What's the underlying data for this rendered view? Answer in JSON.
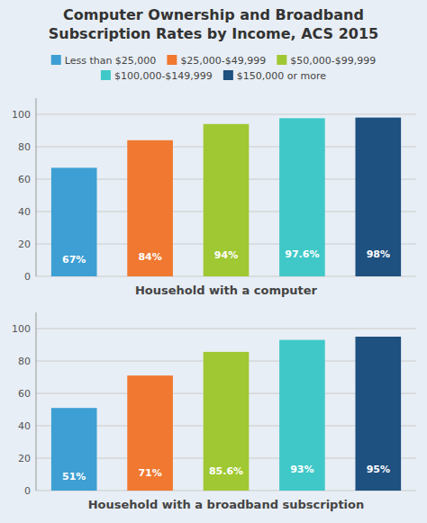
{
  "chart_data": [
    {
      "type": "bar",
      "title": "Computer Ownership and Broadband\nSubscription Rates by Income, ACS 2015",
      "categories": [
        "Less than $25,000",
        "$25,000-$49,999",
        "$50,000-$99,999",
        "$100,000-$149,999",
        "$150,000 or more"
      ],
      "values": [
        67,
        84,
        94,
        97.6,
        98
      ],
      "value_labels": [
        "67%",
        "84%",
        "94%",
        "97.6%",
        "98%"
      ],
      "colors": [
        "#3d9fd3",
        "#f07830",
        "#a0c832",
        "#40c8c8",
        "#1e5080"
      ],
      "xlabel": "Household with a computer",
      "ylim": [
        0,
        110
      ],
      "yticks": [
        0,
        20,
        40,
        60,
        80,
        100
      ],
      "grid": true,
      "legend": "top",
      "data_labels": true,
      "tick_labels": "y"
    },
    {
      "type": "bar",
      "categories": [
        "Less than $25,000",
        "$25,000-$49,999",
        "$50,000-$99,999",
        "$100,000-$149,999",
        "$150,000 or more"
      ],
      "values": [
        51,
        71,
        85.6,
        93,
        95
      ],
      "value_labels": [
        "51%",
        "71%",
        "85.6%",
        "93%",
        "95%"
      ],
      "colors": [
        "#3d9fd3",
        "#f07830",
        "#a0c832",
        "#40c8c8",
        "#1e5080"
      ],
      "xlabel": "Household with a broadband subscription",
      "ylim": [
        0,
        110
      ],
      "yticks": [
        0,
        20,
        40,
        60,
        80,
        100
      ],
      "grid": true,
      "data_labels": true,
      "tick_labels": "y"
    }
  ]
}
